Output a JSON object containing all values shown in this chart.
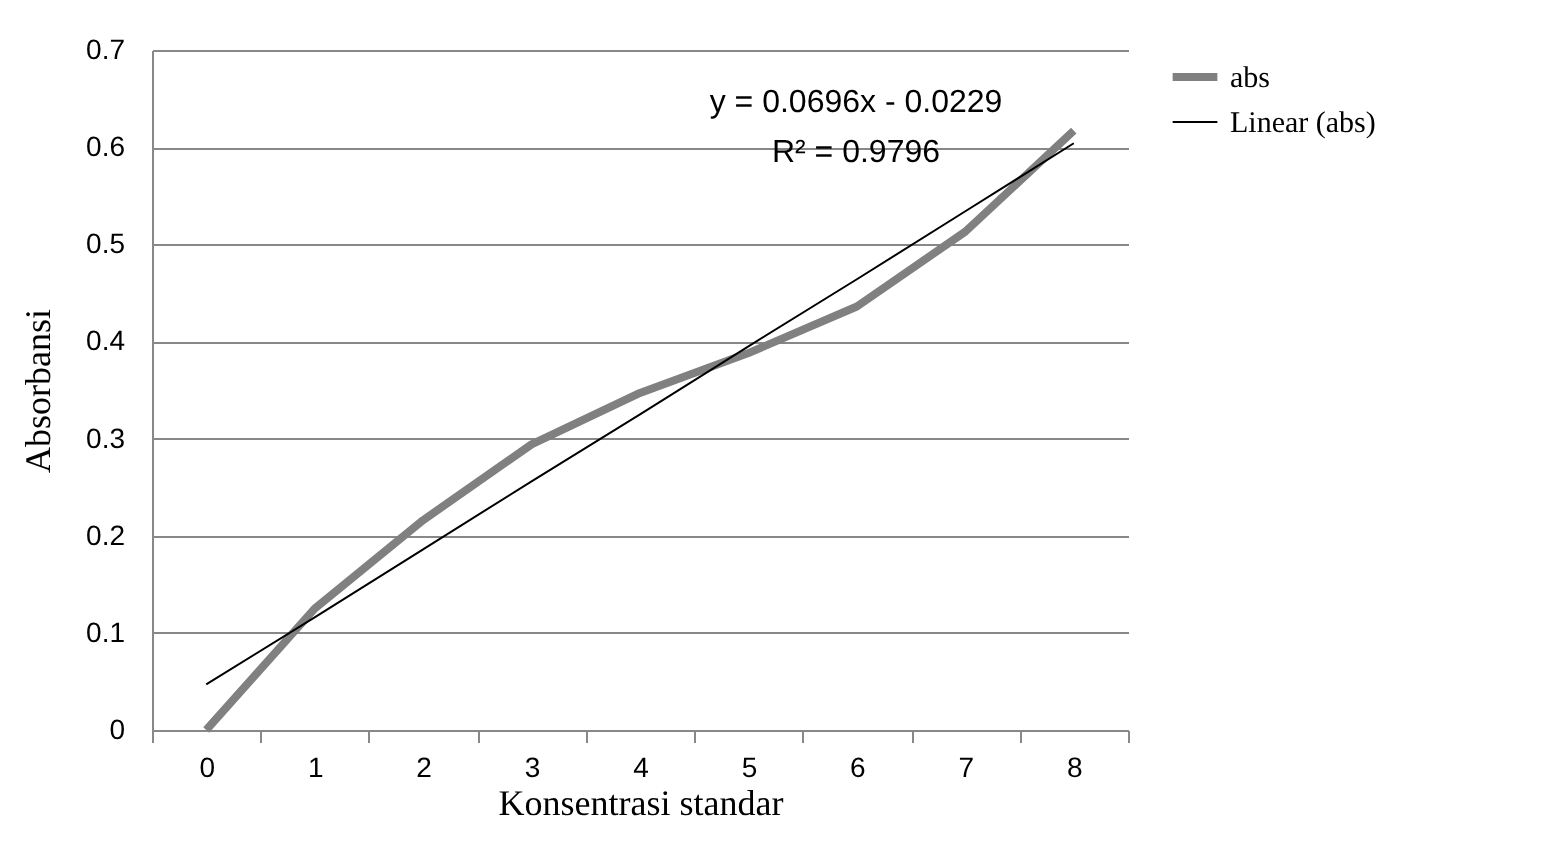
{
  "chart_data": {
    "type": "line",
    "xlabel": "Konsentrasi standar",
    "ylabel": "Absorbansi",
    "categories": [
      "0",
      "1",
      "2",
      "3",
      "4",
      "5",
      "6",
      "7",
      "8"
    ],
    "series": [
      {
        "name": "abs",
        "color": "#808080",
        "values": [
          0,
          0.125,
          0.216,
          0.294,
          0.347,
          0.388,
          0.436,
          0.513,
          0.617
        ]
      },
      {
        "name": "Linear (abs)",
        "color": "#000000",
        "values": [
          0.047,
          0.116,
          0.186,
          0.256,
          0.325,
          0.395,
          0.464,
          0.534,
          0.604
        ]
      }
    ],
    "annotations": [
      "y = 0.0696x - 0.0229",
      "R² = 0.9796"
    ],
    "ylim": [
      0,
      0.7
    ],
    "yticks": [
      0,
      0.1,
      0.2,
      0.3,
      0.4,
      0.5,
      0.6,
      0.7
    ],
    "grid": "y",
    "legend": "right",
    "marker": "none",
    "line_style": "solid"
  }
}
